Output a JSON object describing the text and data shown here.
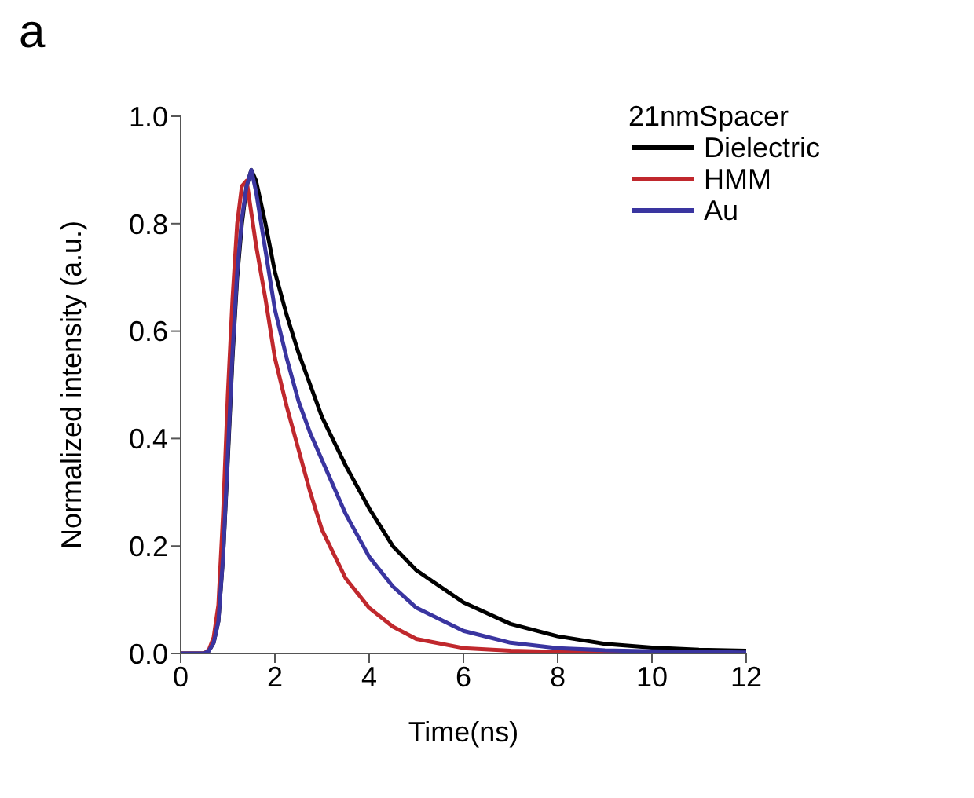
{
  "chart_data": {
    "type": "line",
    "xlabel": "Time(ns)",
    "ylabel": "Normalized intensity (a.u.)",
    "legend_title": "21nmSpacer",
    "legend": "top right",
    "annotations": [
      "a"
    ],
    "x": [
      0,
      0.5,
      0.6,
      0.7,
      0.8,
      0.9,
      1.0,
      1.1,
      1.2,
      1.3,
      1.4,
      1.5,
      1.6,
      1.8,
      2,
      2.25,
      2.5,
      2.75,
      3,
      3.5,
      4,
      4.5,
      5,
      6,
      7,
      8,
      9,
      10,
      11,
      12
    ],
    "xlim": [
      0,
      12
    ],
    "xticks": [
      0,
      2,
      4,
      6,
      8,
      10,
      12
    ],
    "ylim": [
      0,
      1
    ],
    "yticks": [
      {
        "value": 0,
        "label": "0.0"
      },
      0.2,
      0.4,
      0.6,
      0.8,
      {
        "value": 1,
        "label": "1.0"
      }
    ],
    "series": [
      {
        "name": "Dielectric",
        "color": "#000000",
        "values": [
          0,
          0,
          0.005,
          0.02,
          0.06,
          0.18,
          0.36,
          0.55,
          0.7,
          0.8,
          0.87,
          0.9,
          0.88,
          0.8,
          0.71,
          0.63,
          0.56,
          0.5,
          0.44,
          0.35,
          0.27,
          0.2,
          0.155,
          0.095,
          0.055,
          0.032,
          0.018,
          0.011,
          0.007,
          0.005
        ]
      },
      {
        "name": "HMM",
        "color": "#c0282d",
        "values": [
          0,
          0,
          0.007,
          0.03,
          0.09,
          0.26,
          0.48,
          0.66,
          0.8,
          0.87,
          0.88,
          0.82,
          0.76,
          0.66,
          0.55,
          0.46,
          0.38,
          0.3,
          0.23,
          0.14,
          0.085,
          0.05,
          0.027,
          0.01,
          0.005,
          0.003,
          0.002,
          0.001,
          null,
          null
        ]
      },
      {
        "name": "Au",
        "color": "#3a35a0",
        "values": [
          0,
          0,
          0.005,
          0.02,
          0.06,
          0.18,
          0.37,
          0.56,
          0.71,
          0.81,
          0.87,
          0.9,
          0.86,
          0.75,
          0.64,
          0.55,
          0.47,
          0.41,
          0.36,
          0.26,
          0.18,
          0.125,
          0.085,
          0.042,
          0.02,
          0.01,
          0.006,
          0.004,
          0.003,
          0.002
        ]
      }
    ]
  }
}
